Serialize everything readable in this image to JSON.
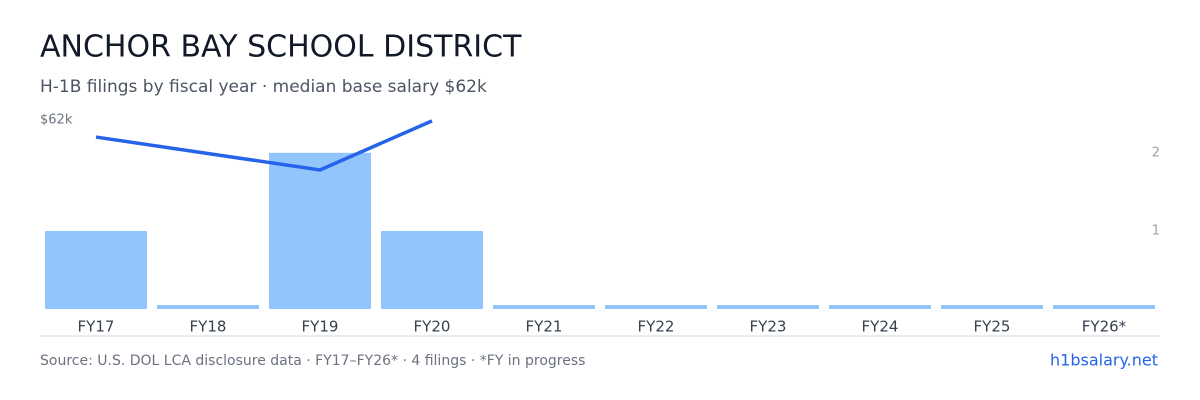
{
  "chart_data": {
    "type": "bar",
    "title": "ANCHOR BAY SCHOOL DISTRICT",
    "subtitle": "H-1B filings by fiscal year · median base salary $62k",
    "categories": [
      "FY17",
      "FY18",
      "FY19",
      "FY20",
      "FY21",
      "FY22",
      "FY23",
      "FY24",
      "FY25",
      "FY26*"
    ],
    "series": [
      {
        "type": "bar",
        "color": "#93c5fd",
        "axis": "y2",
        "values": [
          1,
          0,
          2,
          1,
          0,
          0,
          0,
          0,
          0,
          0
        ]
      },
      {
        "type": "line",
        "color": "#2563eb",
        "x": [
          "FY17",
          "FY19",
          "FY20"
        ],
        "values": [
          56400,
          45600,
          61700
        ]
      }
    ],
    "ylim": [
      0,
      62000
    ],
    "yticks": [
      {
        "value": 62000,
        "label": "$62k"
      }
    ],
    "y2lim": [
      0,
      2.42
    ],
    "y2ticks": [
      1,
      2
    ],
    "source": "Source: U.S. DOL LCA disclosure data · FY17–FY26* · 4 filings · *FY in progress",
    "brand": "h1bsalary.net"
  }
}
